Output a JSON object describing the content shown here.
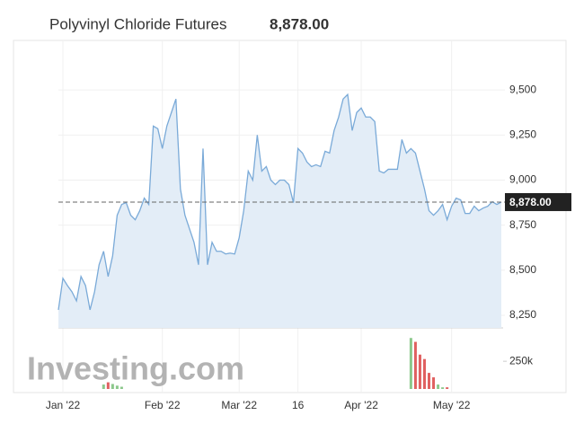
{
  "chart_data": {
    "type": "area",
    "title": "Polyvinyl Chloride Futures",
    "last_price": {
      "value": 8878,
      "label": "8,878.00"
    },
    "watermark": "Investing.com",
    "color": "#7aaad8",
    "fill": "#e3edf7",
    "categories": [
      null,
      "Jan '22",
      null,
      null,
      null,
      null,
      null,
      null,
      null,
      null,
      null,
      null,
      null,
      null,
      null,
      null,
      null,
      null,
      null,
      null,
      null,
      null,
      null,
      "Feb '22",
      null,
      null,
      null,
      null,
      null,
      null,
      null,
      null,
      null,
      null,
      null,
      null,
      null,
      null,
      null,
      null,
      "Mar '22",
      null,
      null,
      null,
      null,
      null,
      null,
      null,
      null,
      null,
      null,
      null,
      null,
      "16",
      null,
      null,
      null,
      null,
      null,
      null,
      null,
      null,
      null,
      null,
      null,
      null,
      null,
      "Apr '22",
      null,
      null,
      null,
      null,
      null,
      null,
      null,
      null,
      null,
      null,
      null,
      null,
      null,
      null,
      null,
      null,
      null,
      null,
      null,
      "May '22",
      null,
      null,
      null,
      null,
      null,
      null,
      null,
      null,
      null,
      null,
      null
    ],
    "values": [
      8280,
      8455,
      8415,
      8380,
      8330,
      8465,
      8415,
      8280,
      8380,
      8530,
      8605,
      8465,
      8580,
      8805,
      8865,
      8875,
      8805,
      8780,
      8830,
      8900,
      8865,
      9300,
      9285,
      9175,
      9300,
      9375,
      9450,
      8950,
      8805,
      8730,
      8655,
      8530,
      9175,
      8530,
      8655,
      8605,
      8605,
      8590,
      8595,
      8590,
      8680,
      8830,
      9050,
      9000,
      9250,
      9050,
      9075,
      9000,
      8975,
      9000,
      9000,
      8975,
      8875,
      9175,
      9150,
      9100,
      9075,
      9085,
      9075,
      9160,
      9150,
      9275,
      9350,
      9450,
      9475,
      9275,
      9375,
      9400,
      9350,
      9350,
      9325,
      9050,
      9040,
      9060,
      9060,
      9060,
      9225,
      9150,
      9175,
      9150,
      9050,
      8950,
      8830,
      8805,
      8830,
      8865,
      8780,
      8855,
      8900,
      8890,
      8815,
      8815,
      8855,
      8830,
      8845,
      8855,
      8880,
      8865,
      8878
    ],
    "ylim": [
      8180,
      9775
    ],
    "yticks": [
      {
        "value": 8250,
        "label": "8,250"
      },
      {
        "value": 8500,
        "label": "8,500"
      },
      {
        "value": 8750,
        "label": "8,750"
      },
      {
        "value": 9000,
        "label": "9,000"
      },
      {
        "value": 9250,
        "label": "9,250"
      },
      {
        "value": 9500,
        "label": "9,500"
      }
    ],
    "volume": [
      null,
      null,
      null,
      null,
      null,
      null,
      null,
      null,
      null,
      null,
      40000,
      60000,
      45000,
      30000,
      20000,
      null,
      null,
      null,
      null,
      null,
      null,
      null,
      null,
      null,
      null,
      null,
      null,
      null,
      null,
      null,
      null,
      null,
      null,
      null,
      null,
      null,
      null,
      null,
      null,
      null,
      null,
      null,
      null,
      null,
      null,
      null,
      null,
      null,
      null,
      null,
      null,
      null,
      null,
      null,
      null,
      null,
      null,
      null,
      null,
      null,
      null,
      null,
      null,
      null,
      null,
      null,
      null,
      null,
      null,
      null,
      null,
      null,
      null,
      null,
      null,
      null,
      null,
      null,
      460000,
      425000,
      310000,
      270000,
      145000,
      105000,
      40000,
      15000,
      15000,
      null,
      null,
      null,
      null,
      null,
      null,
      null,
      null,
      null,
      null,
      null,
      null
    ],
    "volume_ylim": [
      0,
      470000
    ],
    "volume_yticks": [
      {
        "value": 250000,
        "label": "250k"
      }
    ],
    "volume_colors": {
      "up": "#8cc88c",
      "down": "#e06060"
    },
    "grid": true
  }
}
